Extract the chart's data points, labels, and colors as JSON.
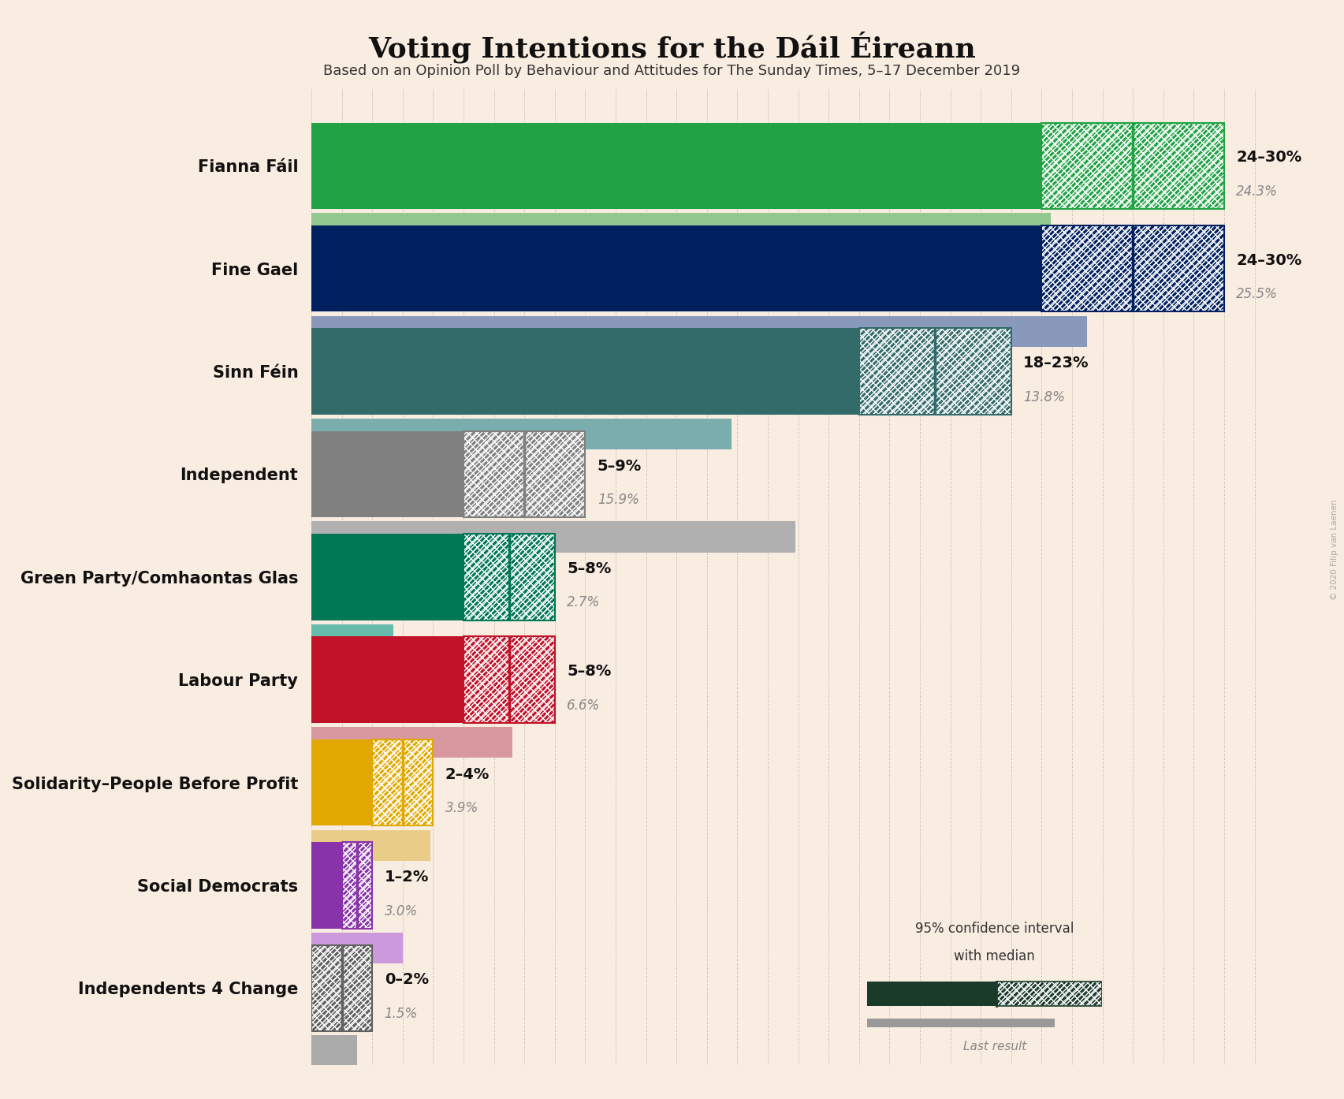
{
  "title": "Voting Intentions for the Dáil Éireann",
  "subtitle": "Based on an Opinion Poll by Behaviour and Attitudes for The Sunday Times, 5–17 December 2019",
  "watermark": "© 2020 Filip van Laenen",
  "background_color": "#f9ece0",
  "parties": [
    "Fianna Fáil",
    "Fine Gael",
    "Sinn Féin",
    "Independent",
    "Green Party/Comhaontas Glas",
    "Labour Party",
    "Solidarity–People Before Profit",
    "Social Democrats",
    "Independents 4 Change"
  ],
  "ci_low": [
    24,
    24,
    18,
    5,
    5,
    5,
    2,
    1,
    0
  ],
  "ci_high": [
    30,
    30,
    23,
    9,
    8,
    8,
    4,
    2,
    2
  ],
  "ci_median": [
    27,
    27,
    20.5,
    7,
    6.5,
    6.5,
    3,
    1.5,
    1
  ],
  "last_result": [
    24.3,
    25.5,
    13.8,
    15.9,
    2.7,
    6.6,
    3.9,
    3.0,
    1.5
  ],
  "label_range": [
    "24–30%",
    "24–30%",
    "18–23%",
    "5–9%",
    "5–8%",
    "5–8%",
    "2–4%",
    "1–2%",
    "0–2%"
  ],
  "label_last": [
    "24.3%",
    "25.5%",
    "13.8%",
    "15.9%",
    "2.7%",
    "6.6%",
    "3.9%",
    "3.0%",
    "1.5%"
  ],
  "bar_colors": [
    "#21A244",
    "#002060",
    "#336B6B",
    "#808080",
    "#007755",
    "#C0132A",
    "#E0A800",
    "#8833AA",
    "#606060"
  ],
  "last_colors": [
    "#90C890",
    "#8899BB",
    "#7AADAD",
    "#B0B0B0",
    "#66BBAA",
    "#D8999E",
    "#E8CC88",
    "#CC99DD",
    "#AAAAAA"
  ],
  "hatch_edge_colors": [
    "#21A244",
    "#002060",
    "#336B6B",
    "#808080",
    "#007755",
    "#C0132A",
    "#E0A800",
    "#8833AA",
    "#606060"
  ],
  "xlim_max": 32,
  "legend_ci_color": "#1a3a2a",
  "legend_last_color": "#999999"
}
